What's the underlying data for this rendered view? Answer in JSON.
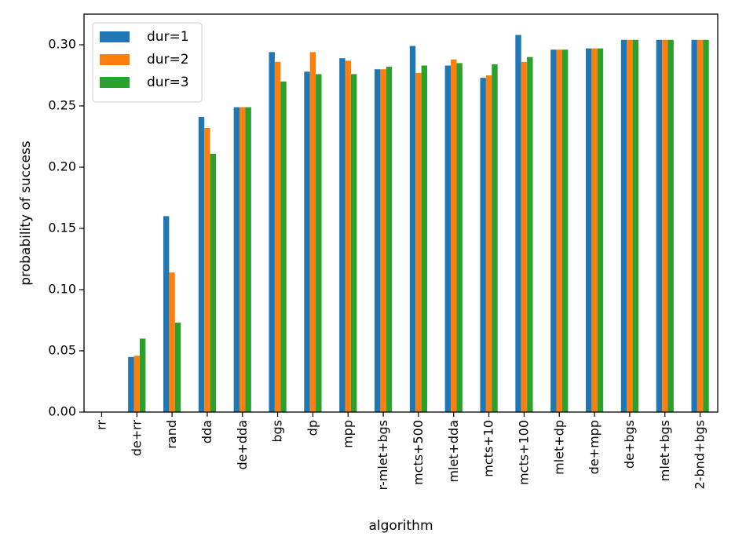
{
  "chart_data": {
    "type": "bar",
    "xlabel": "algorithm",
    "ylabel": "probability of success",
    "ylim": [
      0,
      0.325
    ],
    "yticks": [
      "0.00",
      "0.05",
      "0.10",
      "0.15",
      "0.20",
      "0.25",
      "0.30"
    ],
    "legend_position": "top-left",
    "grid": false,
    "categories": [
      "rr",
      "de+rr",
      "rand",
      "dda",
      "de+dda",
      "bgs",
      "dp",
      "mpp",
      "r-mlet+bgs",
      "mcts+500",
      "mlet+dda",
      "mcts+10",
      "mcts+100",
      "mlet+dp",
      "de+mpp",
      "de+bgs",
      "mlet+bgs",
      "2-bnd+bgs"
    ],
    "series": [
      {
        "name": "dur=1",
        "color": "#1f77b4",
        "values": [
          0.0,
          0.045,
          0.16,
          0.241,
          0.249,
          0.294,
          0.278,
          0.289,
          0.28,
          0.299,
          0.283,
          0.273,
          0.308,
          0.296,
          0.297,
          0.304,
          0.304,
          0.304
        ]
      },
      {
        "name": "dur=2",
        "color": "#ff7f0e",
        "values": [
          0.0,
          0.046,
          0.114,
          0.232,
          0.249,
          0.286,
          0.294,
          0.287,
          0.28,
          0.277,
          0.288,
          0.275,
          0.286,
          0.296,
          0.297,
          0.304,
          0.304,
          0.304
        ]
      },
      {
        "name": "dur=3",
        "color": "#2ca02c",
        "values": [
          0.0,
          0.06,
          0.073,
          0.211,
          0.249,
          0.27,
          0.276,
          0.276,
          0.282,
          0.283,
          0.285,
          0.284,
          0.29,
          0.296,
          0.297,
          0.304,
          0.304,
          0.304
        ]
      }
    ]
  }
}
